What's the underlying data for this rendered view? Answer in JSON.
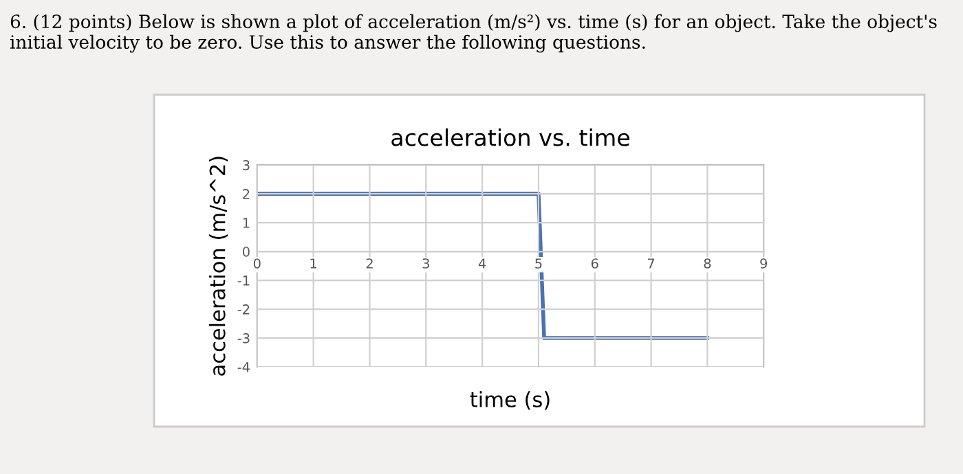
{
  "chart_data": {
    "type": "line",
    "title": "acceleration vs. time",
    "xlabel": "time (s)",
    "ylabel": "acceleration (m/s^2)",
    "annotations": [
      "6. (12 points) Below is shown a plot of acceleration (m/s²) vs. time (s) for an object. Take the object's initial velocity to be zero. Use this to answer the following questions."
    ],
    "series": [
      {
        "color": "#4a72b0",
        "x": [
          0,
          5,
          5.1,
          8
        ],
        "values": [
          2,
          2,
          -3,
          -3
        ]
      }
    ],
    "xlim": [
      0,
      9
    ],
    "xticks": [
      0,
      1,
      2,
      3,
      4,
      5,
      6,
      7,
      8,
      9
    ],
    "ylim": [
      -4,
      3
    ],
    "yticks": [
      -4,
      -3,
      -2,
      -1,
      0,
      1,
      2,
      3
    ],
    "grid": true,
    "marker": "none",
    "line_style": "solid",
    "legend": false
  }
}
